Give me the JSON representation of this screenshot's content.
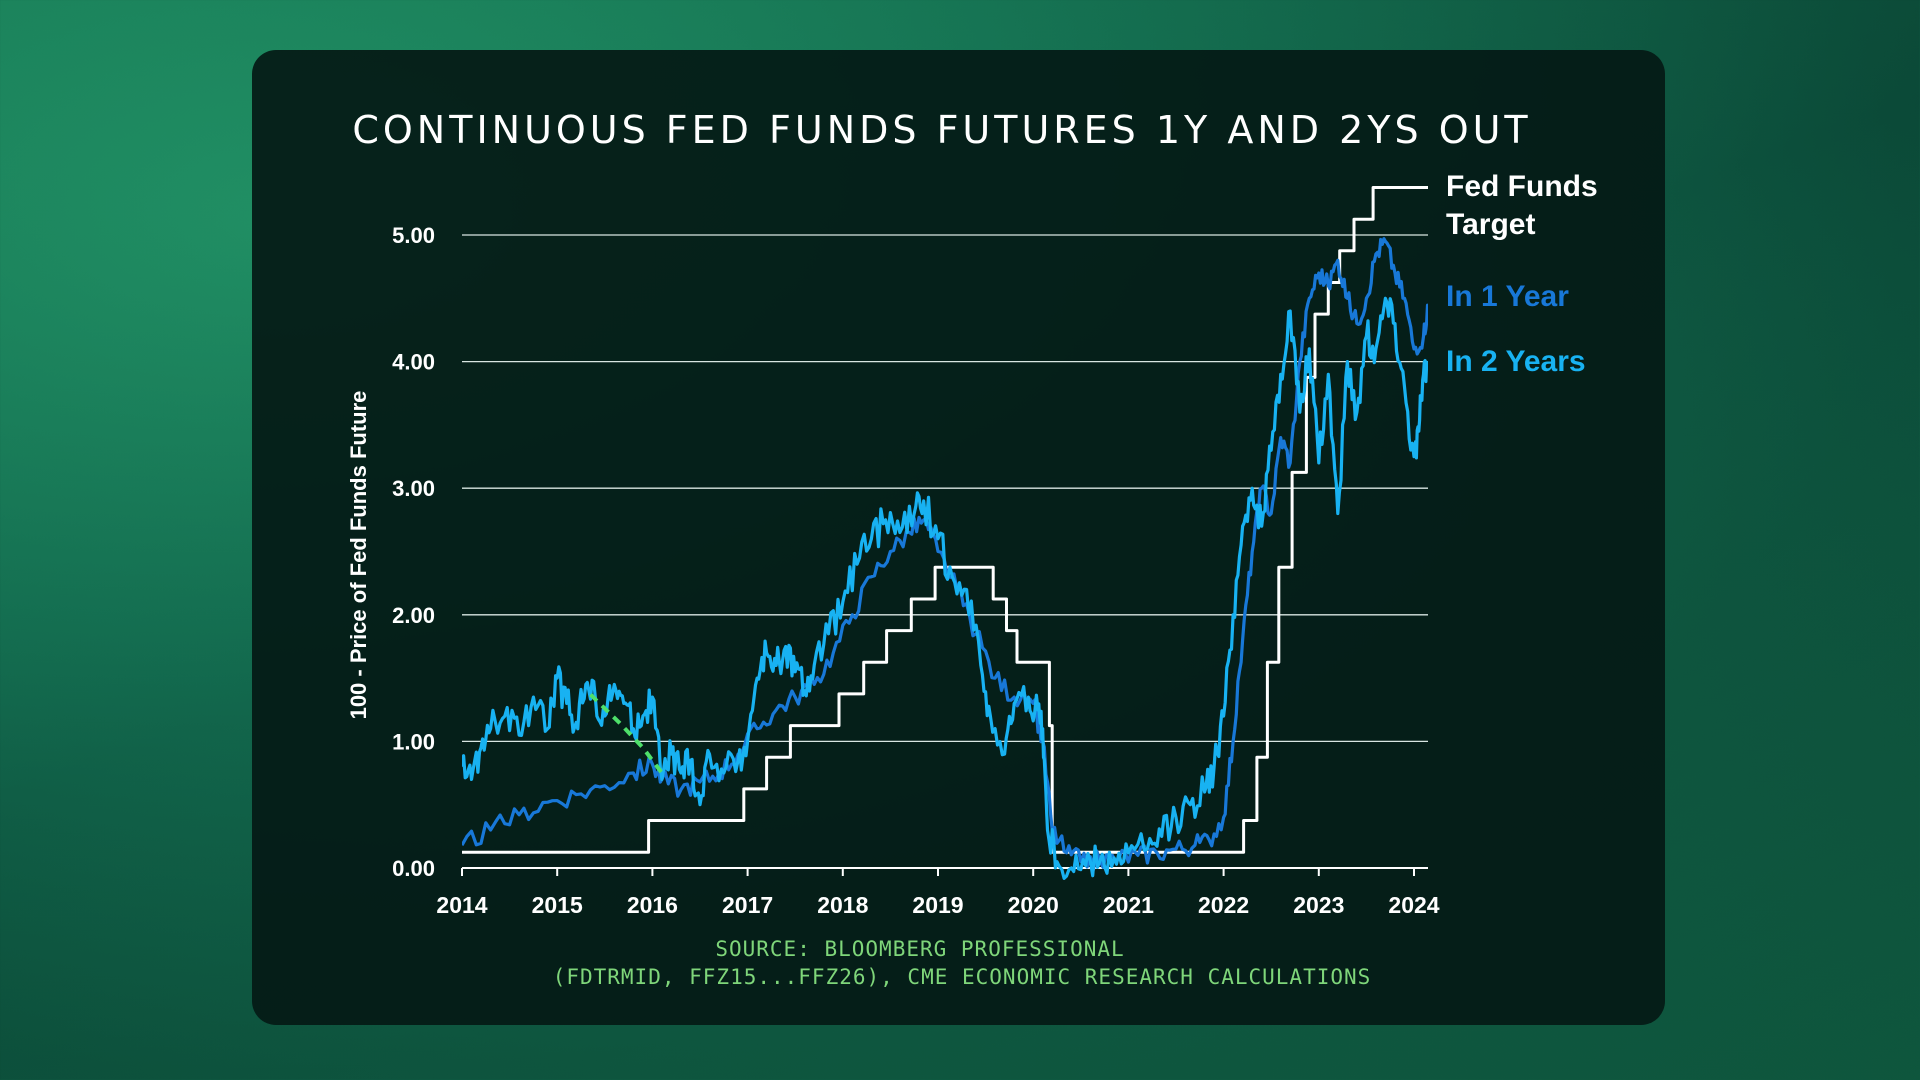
{
  "chart_data": {
    "type": "line",
    "title": "CONTINUOUS FED FUNDS FUTURES 1Y AND 2YS OUT",
    "ylabel": "100 - Price of Fed Funds Future",
    "xlabel": "",
    "ylim": [
      0,
      5.2
    ],
    "xlim": [
      2014.0,
      2024.15
    ],
    "yticks": [
      "0.00",
      "1.00",
      "2.00",
      "3.00",
      "4.00",
      "5.00"
    ],
    "xticks": [
      "2014",
      "2015",
      "2016",
      "2017",
      "2018",
      "2019",
      "2020",
      "2021",
      "2022",
      "2023",
      "2024"
    ],
    "grid": true,
    "legend_placement": "right",
    "series": [
      {
        "name": "Fed Funds Target",
        "color": "#ffffff",
        "x": [
          2014.0,
          2015.96,
          2015.96,
          2016.96,
          2016.96,
          2017.2,
          2017.2,
          2017.45,
          2017.45,
          2017.96,
          2017.96,
          2018.22,
          2018.22,
          2018.46,
          2018.46,
          2018.72,
          2018.72,
          2018.97,
          2018.97,
          2019.58,
          2019.58,
          2019.72,
          2019.72,
          2019.83,
          2019.83,
          2020.17,
          2020.17,
          2020.2,
          2020.2,
          2022.21,
          2022.21,
          2022.35,
          2022.35,
          2022.46,
          2022.46,
          2022.58,
          2022.58,
          2022.72,
          2022.72,
          2022.87,
          2022.87,
          2022.96,
          2022.96,
          2023.1,
          2023.1,
          2023.22,
          2023.22,
          2023.37,
          2023.37,
          2023.57,
          2023.57,
          2024.15
        ],
        "y": [
          0.125,
          0.125,
          0.375,
          0.375,
          0.625,
          0.625,
          0.875,
          0.875,
          1.125,
          1.125,
          1.375,
          1.375,
          1.625,
          1.625,
          1.875,
          1.875,
          2.125,
          2.125,
          2.375,
          2.375,
          2.125,
          2.125,
          1.875,
          1.875,
          1.625,
          1.625,
          1.125,
          1.125,
          0.125,
          0.125,
          0.375,
          0.375,
          0.875,
          0.875,
          1.625,
          1.625,
          2.375,
          2.375,
          3.125,
          3.125,
          3.875,
          3.875,
          4.375,
          4.375,
          4.625,
          4.625,
          4.875,
          4.875,
          5.125,
          5.125,
          5.375,
          5.375
        ]
      },
      {
        "name": "In 1 Year",
        "color": "#1878d8",
        "x": [
          2014.0,
          2014.3,
          2014.6,
          2014.9,
          2015.2,
          2015.5,
          2015.8,
          2016.0,
          2016.1,
          2016.3,
          2016.5,
          2016.7,
          2016.9,
          2017.1,
          2017.3,
          2017.5,
          2017.7,
          2017.9,
          2018.1,
          2018.3,
          2018.5,
          2018.7,
          2018.85,
          2019.0,
          2019.2,
          2019.4,
          2019.6,
          2019.8,
          2020.0,
          2020.1,
          2020.2,
          2020.35,
          2020.5,
          2020.7,
          2020.9,
          2021.1,
          2021.3,
          2021.5,
          2021.7,
          2021.85,
          2022.0,
          2022.1,
          2022.2,
          2022.3,
          2022.4,
          2022.5,
          2022.6,
          2022.7,
          2022.8,
          2022.9,
          2023.0,
          2023.1,
          2023.2,
          2023.3,
          2023.4,
          2023.5,
          2023.6,
          2023.7,
          2023.8,
          2023.9,
          2024.0,
          2024.1,
          2024.15
        ],
        "y": [
          0.18,
          0.3,
          0.42,
          0.52,
          0.58,
          0.65,
          0.75,
          0.82,
          0.7,
          0.62,
          0.68,
          0.75,
          0.9,
          1.1,
          1.25,
          1.35,
          1.45,
          1.7,
          2.0,
          2.3,
          2.5,
          2.65,
          2.75,
          2.5,
          2.2,
          1.85,
          1.5,
          1.35,
          1.3,
          1.0,
          0.3,
          0.12,
          0.05,
          0.06,
          0.08,
          0.1,
          0.12,
          0.15,
          0.18,
          0.22,
          0.4,
          1.0,
          1.8,
          2.5,
          3.0,
          2.8,
          3.4,
          3.2,
          4.0,
          4.5,
          4.7,
          4.6,
          4.8,
          4.5,
          4.3,
          4.5,
          4.85,
          4.95,
          4.7,
          4.5,
          4.1,
          4.2,
          4.45
        ]
      },
      {
        "name": "In 2 Years",
        "color": "#18b2f2",
        "x": [
          2014.0,
          2014.1,
          2014.2,
          2014.3,
          2014.45,
          2014.6,
          2014.75,
          2014.9,
          2015.0,
          2015.1,
          2015.2,
          2015.3,
          2015.4,
          2015.5,
          2015.6,
          2015.7,
          2015.8,
          2015.9,
          2016.0,
          2016.1,
          2016.2,
          2016.3,
          2016.4,
          2016.5,
          2016.6,
          2016.75,
          2016.9,
          2017.0,
          2017.1,
          2017.2,
          2017.3,
          2017.4,
          2017.5,
          2017.6,
          2017.7,
          2017.85,
          2018.0,
          2018.15,
          2018.3,
          2018.45,
          2018.6,
          2018.75,
          2018.85,
          2019.0,
          2019.15,
          2019.3,
          2019.45,
          2019.55,
          2019.7,
          2019.8,
          2019.95,
          2020.05,
          2020.1,
          2020.15,
          2020.25,
          2020.4,
          2020.55,
          2020.7,
          2020.85,
          2021.0,
          2021.2,
          2021.35,
          2021.5,
          2021.65,
          2021.8,
          2021.9,
          2022.0,
          2022.1,
          2022.2,
          2022.3,
          2022.4,
          2022.5,
          2022.6,
          2022.7,
          2022.8,
          2022.9,
          2023.0,
          2023.1,
          2023.2,
          2023.3,
          2023.4,
          2023.5,
          2023.6,
          2023.7,
          2023.8,
          2023.9,
          2024.0,
          2024.05,
          2024.1,
          2024.15
        ],
        "y": [
          0.8,
          0.7,
          0.95,
          1.1,
          1.2,
          1.05,
          1.35,
          1.1,
          1.5,
          1.3,
          1.15,
          1.45,
          1.35,
          1.2,
          1.45,
          1.3,
          1.1,
          1.2,
          1.35,
          0.7,
          0.9,
          0.75,
          0.85,
          0.5,
          0.9,
          0.75,
          0.85,
          1.0,
          1.5,
          1.7,
          1.6,
          1.75,
          1.55,
          1.4,
          1.6,
          1.85,
          2.1,
          2.4,
          2.6,
          2.75,
          2.65,
          2.8,
          2.9,
          2.6,
          2.3,
          2.2,
          1.6,
          1.2,
          0.9,
          1.3,
          1.35,
          1.25,
          1.1,
          0.3,
          0.05,
          0.0,
          0.02,
          0.05,
          0.08,
          0.12,
          0.15,
          0.25,
          0.4,
          0.5,
          0.6,
          0.8,
          1.2,
          2.0,
          2.7,
          3.0,
          2.7,
          3.3,
          3.9,
          4.4,
          3.6,
          4.1,
          3.2,
          3.9,
          2.8,
          4.0,
          3.6,
          4.2,
          4.1,
          4.5,
          4.3,
          3.8,
          3.25,
          3.45,
          3.9,
          4.0
        ]
      },
      {
        "name": "",
        "color": "#4ee06a",
        "style": "dashed",
        "x": [
          2015.35,
          2015.65,
          2015.9,
          2016.1
        ],
        "y": [
          1.37,
          1.15,
          0.95,
          0.75
        ]
      }
    ],
    "legend": [
      {
        "label": "Fed Funds Target",
        "color": "#ffffff"
      },
      {
        "label": "In 1 Year",
        "color": "#1878d8"
      },
      {
        "label": "In 2 Years",
        "color": "#18b2f2"
      }
    ]
  },
  "source": {
    "line1": "SOURCE: BLOOMBERG PROFESSIONAL",
    "line2": "(FDTRMID, FFZ15...FFZ26), CME ECONOMIC RESEARCH CALCULATIONS"
  }
}
